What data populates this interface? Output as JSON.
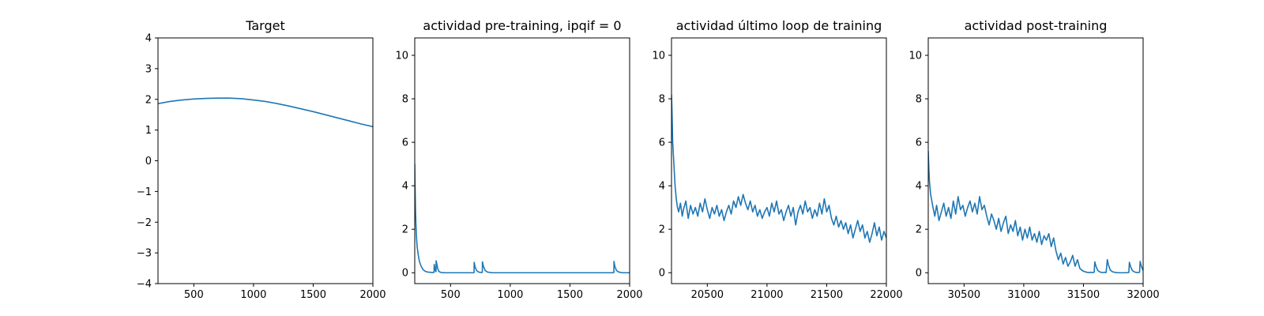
{
  "chart_data": [
    {
      "type": "line",
      "title": "Target",
      "xlabel": "",
      "ylabel": "",
      "xlim": [
        200,
        2000
      ],
      "ylim": [
        -4,
        4
      ],
      "xticks": [
        500,
        1000,
        1500,
        2000
      ],
      "yticks": [
        -4,
        -3,
        -2,
        -1,
        0,
        1,
        2,
        3,
        4
      ],
      "grid": false,
      "series": [
        {
          "name": "target",
          "color": "#1f77b4",
          "x": [
            200,
            300,
            400,
            500,
            600,
            700,
            750,
            800,
            900,
            1000,
            1100,
            1200,
            1300,
            1400,
            1500,
            1600,
            1700,
            1800,
            1900,
            2000
          ],
          "y": [
            1.86,
            1.93,
            1.98,
            2.01,
            2.03,
            2.04,
            2.04,
            2.04,
            2.02,
            1.98,
            1.93,
            1.86,
            1.78,
            1.69,
            1.6,
            1.5,
            1.4,
            1.3,
            1.2,
            1.11
          ]
        }
      ]
    },
    {
      "type": "line",
      "title": "actividad pre-training, ipqif = 0",
      "xlabel": "",
      "ylabel": "",
      "xlim": [
        200,
        2000
      ],
      "ylim": [
        -0.5,
        10.8
      ],
      "xticks": [
        500,
        1000,
        1500,
        2000
      ],
      "yticks": [
        0,
        2,
        4,
        6,
        8,
        10
      ],
      "grid": false,
      "series": [
        {
          "name": "actividad",
          "color": "#1f77b4",
          "x": [
            200,
            202,
            206,
            210,
            215,
            220,
            230,
            240,
            255,
            270,
            290,
            310,
            330,
            350,
            362,
            363,
            368,
            375,
            378,
            379,
            385,
            392,
            402,
            420,
            450,
            500,
            600,
            690,
            697,
            698,
            705,
            718,
            735,
            760,
            766,
            767,
            775,
            790,
            810,
            850,
            1000,
            1400,
            1850,
            1868,
            1869,
            1876,
            1890,
            1910,
            1940,
            2000
          ],
          "y": [
            5.0,
            4.2,
            3.0,
            2.2,
            1.6,
            1.2,
            0.8,
            0.5,
            0.28,
            0.14,
            0.06,
            0.03,
            0.02,
            0.01,
            0.02,
            0.38,
            0.22,
            0.08,
            0.05,
            0.55,
            0.4,
            0.2,
            0.06,
            0.01,
            0.0,
            0.0,
            0.0,
            0.0,
            0.01,
            0.48,
            0.28,
            0.1,
            0.03,
            0.01,
            0.02,
            0.5,
            0.3,
            0.1,
            0.03,
            0.0,
            0.0,
            0.0,
            0.0,
            0.01,
            0.52,
            0.3,
            0.1,
            0.03,
            0.0,
            0.0
          ]
        }
      ]
    },
    {
      "type": "line",
      "title": "actividad último loop de training",
      "xlabel": "",
      "ylabel": "",
      "xlim": [
        20200,
        22000
      ],
      "ylim": [
        -0.5,
        10.8
      ],
      "xticks": [
        20500,
        21000,
        21500,
        22000
      ],
      "yticks": [
        0,
        2,
        4,
        6,
        8,
        10
      ],
      "grid": false,
      "series": [
        {
          "name": "actividad",
          "color": "#1f77b4",
          "x": [
            20200,
            20205,
            20210,
            20220,
            20230,
            20240,
            20250,
            20260,
            20275,
            20290,
            20300,
            20320,
            20340,
            20360,
            20380,
            20400,
            20420,
            20440,
            20460,
            20480,
            20500,
            20520,
            20540,
            20560,
            20580,
            20600,
            20620,
            20640,
            20660,
            20680,
            20700,
            20720,
            20740,
            20760,
            20780,
            20800,
            20820,
            20840,
            20860,
            20880,
            20900,
            20920,
            20940,
            20960,
            20980,
            21000,
            21020,
            21040,
            21060,
            21080,
            21100,
            21120,
            21140,
            21160,
            21180,
            21200,
            21220,
            21240,
            21260,
            21280,
            21300,
            21320,
            21340,
            21360,
            21380,
            21400,
            21420,
            21440,
            21460,
            21480,
            21500,
            21520,
            21540,
            21560,
            21580,
            21600,
            21620,
            21640,
            21660,
            21680,
            21700,
            21720,
            21740,
            21760,
            21780,
            21800,
            21820,
            21840,
            21860,
            21880,
            21900,
            21920,
            21940,
            21960,
            21980,
            22000
          ],
          "y": [
            8.2,
            7.2,
            6.0,
            5.0,
            4.0,
            3.4,
            3.0,
            2.8,
            3.2,
            2.6,
            2.9,
            3.3,
            2.5,
            3.1,
            2.7,
            3.0,
            2.6,
            3.2,
            2.8,
            3.4,
            2.9,
            2.5,
            3.0,
            2.7,
            3.1,
            2.6,
            2.9,
            2.4,
            2.8,
            3.1,
            2.7,
            3.3,
            3.0,
            3.5,
            3.1,
            3.6,
            3.2,
            2.9,
            3.3,
            2.8,
            3.1,
            2.6,
            2.9,
            2.5,
            2.8,
            3.0,
            2.6,
            3.2,
            2.8,
            3.3,
            2.7,
            2.9,
            2.4,
            2.8,
            3.1,
            2.6,
            3.0,
            2.2,
            2.8,
            3.1,
            2.7,
            3.3,
            2.8,
            3.0,
            2.5,
            2.9,
            2.6,
            3.2,
            2.7,
            3.4,
            2.8,
            3.1,
            2.5,
            2.2,
            2.6,
            2.1,
            2.4,
            2.0,
            2.3,
            1.8,
            2.2,
            1.6,
            2.0,
            2.4,
            1.9,
            2.2,
            1.6,
            1.9,
            1.4,
            1.8,
            2.3,
            1.7,
            2.1,
            1.5,
            1.9,
            1.6
          ]
        }
      ]
    },
    {
      "type": "line",
      "title": "actividad post-training",
      "xlabel": "",
      "ylabel": "",
      "xlim": [
        30200,
        32000
      ],
      "ylim": [
        -0.5,
        10.8
      ],
      "xticks": [
        30500,
        31000,
        31500,
        32000
      ],
      "yticks": [
        0,
        2,
        4,
        6,
        8,
        10
      ],
      "grid": false,
      "series": [
        {
          "name": "actividad",
          "color": "#1f77b4",
          "x": [
            30200,
            30205,
            30210,
            30220,
            30230,
            30240,
            30255,
            30270,
            30290,
            30310,
            30330,
            30350,
            30370,
            30390,
            30410,
            30430,
            30450,
            30470,
            30490,
            30510,
            30530,
            30550,
            30570,
            30590,
            30610,
            30630,
            30650,
            30670,
            30690,
            30710,
            30730,
            30750,
            30770,
            30790,
            30810,
            30830,
            30850,
            30870,
            30890,
            30910,
            30930,
            30950,
            30970,
            30990,
            31010,
            31030,
            31050,
            31070,
            31090,
            31110,
            31130,
            31150,
            31170,
            31190,
            31210,
            31230,
            31250,
            31270,
            31290,
            31310,
            31330,
            31350,
            31370,
            31390,
            31410,
            31430,
            31450,
            31470,
            31490,
            31510,
            31530,
            31545,
            31560,
            31575,
            31590,
            31595,
            31605,
            31620,
            31640,
            31660,
            31680,
            31690,
            31700,
            31710,
            31725,
            31745,
            31770,
            31800,
            31850,
            31880,
            31885,
            31895,
            31910,
            31930,
            31950,
            31970,
            31975,
            31985,
            32000
          ],
          "y": [
            5.6,
            4.8,
            4.2,
            3.6,
            3.3,
            3.0,
            2.6,
            3.1,
            2.4,
            2.8,
            3.2,
            2.6,
            3.0,
            2.5,
            3.3,
            2.7,
            3.5,
            2.9,
            3.1,
            2.6,
            3.0,
            3.3,
            2.8,
            3.2,
            2.7,
            3.5,
            2.9,
            3.1,
            2.6,
            2.2,
            2.7,
            2.4,
            2.0,
            2.5,
            1.9,
            2.3,
            2.6,
            1.8,
            2.2,
            1.9,
            2.4,
            1.7,
            2.1,
            1.5,
            2.0,
            1.6,
            2.1,
            1.5,
            1.8,
            1.4,
            1.9,
            1.3,
            1.7,
            1.5,
            1.8,
            1.2,
            1.6,
            1.0,
            0.6,
            0.9,
            0.4,
            0.7,
            0.3,
            0.5,
            0.8,
            0.3,
            0.6,
            0.2,
            0.1,
            0.05,
            0.02,
            0.01,
            0.02,
            0.01,
            0.02,
            0.5,
            0.3,
            0.1,
            0.03,
            0.01,
            0.02,
            0.01,
            0.6,
            0.35,
            0.12,
            0.04,
            0.01,
            0.0,
            0.0,
            0.01,
            0.48,
            0.28,
            0.1,
            0.03,
            0.01,
            0.02,
            0.52,
            0.3,
            0.1
          ]
        }
      ]
    }
  ]
}
